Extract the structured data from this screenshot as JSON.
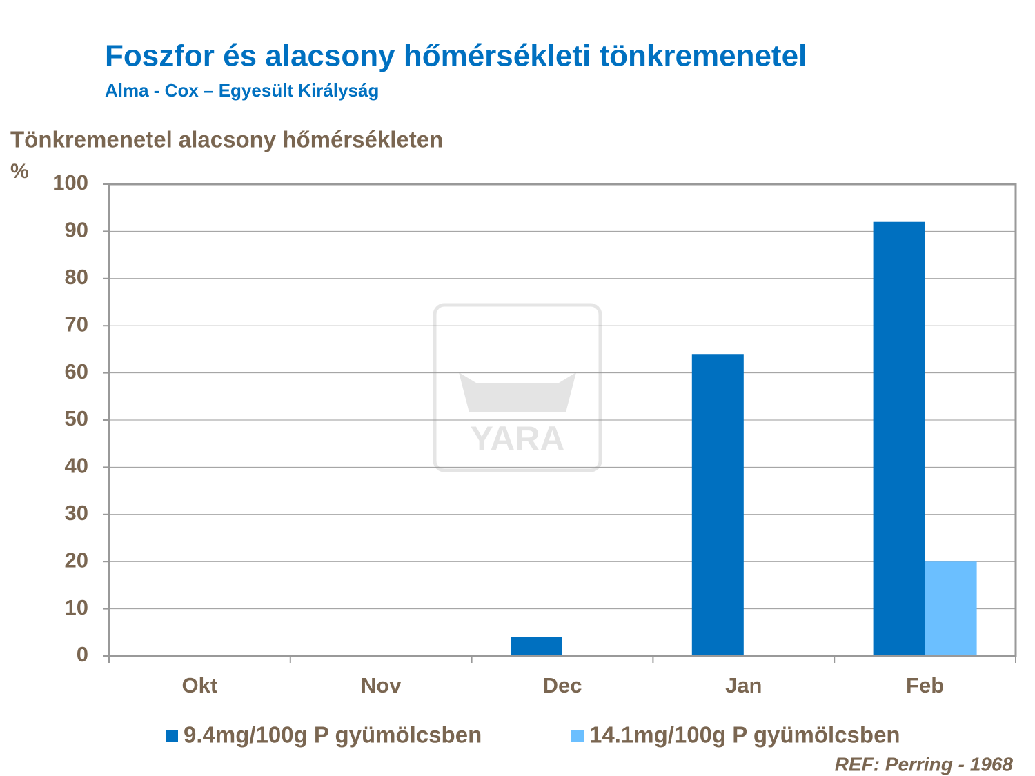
{
  "chart_data": {
    "type": "bar",
    "title": "Foszfor és alacsony hőmérsékleti tönkremenetel",
    "subtitle": "Alma - Cox – Egyesült Királyság",
    "y_label": "Tönkremenetel alacsony hőmérsékleten",
    "y_unit": "%",
    "categories": [
      "Okt",
      "Nov",
      "Dec",
      "Jan",
      "Feb"
    ],
    "series": [
      {
        "name": "9.4mg/100g P gyümölcsben",
        "color": "#0070c0",
        "values": [
          0,
          0,
          4,
          64,
          92
        ]
      },
      {
        "name": "14.1mg/100g P gyümölcsben",
        "color": "#6bbfff",
        "values": [
          0,
          0,
          0,
          0,
          20
        ]
      }
    ],
    "ylim": [
      0,
      100
    ],
    "yticks": [
      0,
      10,
      20,
      30,
      40,
      50,
      60,
      70,
      80,
      90,
      100
    ],
    "grid": true,
    "legend": "bottom",
    "note": "REF: Perring - 1968",
    "watermark": "YARA"
  }
}
